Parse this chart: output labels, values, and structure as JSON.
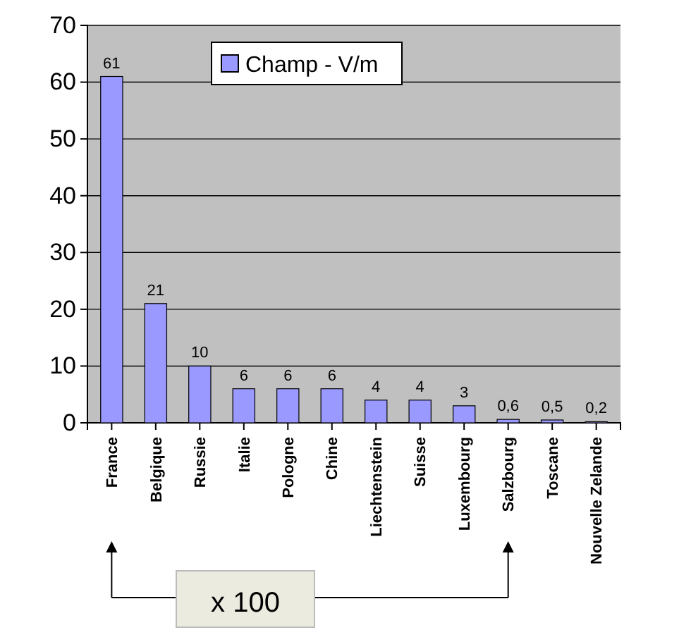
{
  "chart_data": {
    "type": "bar",
    "categories": [
      "France",
      "Belgique",
      "Russie",
      "Italie",
      "Pologne",
      "Chine",
      "Liechtenstein",
      "Suisse",
      "Luxembourg",
      "Salzbourg",
      "Toscane",
      "Nouvelle Zelande"
    ],
    "series": [
      {
        "name": "Champ - V/m",
        "color": "#9999ff",
        "values": [
          61,
          21,
          10,
          6,
          6,
          6,
          4,
          4,
          3,
          0.6,
          0.5,
          0.2
        ],
        "value_labels": [
          "61",
          "21",
          "10",
          "6",
          "6",
          "6",
          "4",
          "4",
          "3",
          "0,6",
          "0,5",
          "0,2"
        ]
      }
    ],
    "ylim": [
      0,
      70
    ],
    "yticks": [
      0,
      10,
      20,
      30,
      40,
      50,
      60,
      70
    ],
    "grid": "y",
    "legend": "top",
    "annotations": [
      "x 100"
    ]
  }
}
